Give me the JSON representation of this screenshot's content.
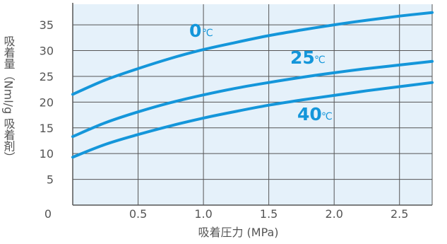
{
  "chart_data": {
    "type": "line",
    "title": "",
    "xlabel": "吸着圧力 (MPa)",
    "ylabel": "吸着量（Nml/g 吸着剤）",
    "xlim": [
      0,
      2.75
    ],
    "ylim": [
      0,
      39
    ],
    "x_ticks": [
      "0.5",
      "1.0",
      "1.5",
      "2.0",
      "2.5"
    ],
    "y_ticks": [
      "5",
      "10",
      "15",
      "20",
      "25",
      "30",
      "35"
    ],
    "origin_label": "0",
    "grid": true,
    "series": [
      {
        "name": "0",
        "unit": "℃",
        "x": [
          0.0,
          0.25,
          0.5,
          0.75,
          1.0,
          1.25,
          1.5,
          1.75,
          2.0,
          2.25,
          2.5,
          2.75
        ],
        "values": [
          21.5,
          24.3,
          26.5,
          28.5,
          30.2,
          31.6,
          32.9,
          34.0,
          35.0,
          35.9,
          36.7,
          37.4
        ]
      },
      {
        "name": "25",
        "unit": "℃",
        "x": [
          0.0,
          0.25,
          0.5,
          0.75,
          1.0,
          1.25,
          1.5,
          1.75,
          2.0,
          2.25,
          2.5,
          2.75
        ],
        "values": [
          13.3,
          16.0,
          18.1,
          19.9,
          21.4,
          22.7,
          23.8,
          24.8,
          25.7,
          26.5,
          27.2,
          27.9
        ]
      },
      {
        "name": "40",
        "unit": "℃",
        "x": [
          0.0,
          0.25,
          0.5,
          0.75,
          1.0,
          1.25,
          1.5,
          1.75,
          2.0,
          2.25,
          2.5,
          2.75
        ],
        "values": [
          9.3,
          11.8,
          13.7,
          15.4,
          16.9,
          18.2,
          19.4,
          20.4,
          21.3,
          22.2,
          23.0,
          23.8
        ]
      }
    ]
  },
  "colors": {
    "plot_bg": "#e5f1fa",
    "grid": "#555555",
    "series": "#1496da",
    "text": "#555555"
  }
}
